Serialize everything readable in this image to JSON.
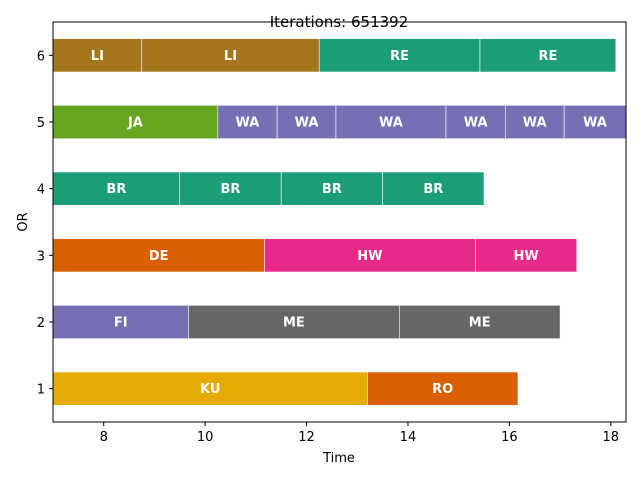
{
  "chart_data": {
    "type": "bar",
    "orientation": "horizontal",
    "title": "Iterations: 651392",
    "xlabel": "Time",
    "ylabel": "OR",
    "xlim": [
      7.0,
      18.3
    ],
    "ylim": [
      0.5,
      6.5
    ],
    "xticks": [
      8,
      10,
      12,
      14,
      16,
      18
    ],
    "yticks": [
      1,
      2,
      3,
      4,
      5,
      6
    ],
    "grid": false,
    "colors": {
      "LI": "#a6761d",
      "RE": "#1b9e77",
      "JA": "#66a61e",
      "WA": "#7570b3",
      "BR": "#1b9e77",
      "DE": "#d95f02",
      "HW": "#e7298a",
      "FI": "#7570b3",
      "ME": "#666666",
      "KU": "#e6ab02",
      "RO": "#d95f02"
    },
    "tasks": [
      {
        "row": 6,
        "label": "LI",
        "start": 7.0,
        "end": 8.75
      },
      {
        "row": 6,
        "label": "LI",
        "start": 8.75,
        "end": 12.25
      },
      {
        "row": 6,
        "label": "RE",
        "start": 12.25,
        "end": 15.42
      },
      {
        "row": 6,
        "label": "RE",
        "start": 15.42,
        "end": 18.1
      },
      {
        "row": 5,
        "label": "JA",
        "start": 7.0,
        "end": 10.25
      },
      {
        "row": 5,
        "label": "WA",
        "start": 10.25,
        "end": 11.42
      },
      {
        "row": 5,
        "label": "WA",
        "start": 11.42,
        "end": 12.58
      },
      {
        "row": 5,
        "label": "WA",
        "start": 12.58,
        "end": 14.75
      },
      {
        "row": 5,
        "label": "WA",
        "start": 14.75,
        "end": 15.92
      },
      {
        "row": 5,
        "label": "WA",
        "start": 15.92,
        "end": 17.08
      },
      {
        "row": 5,
        "label": "WA",
        "start": 17.08,
        "end": 18.3
      },
      {
        "row": 4,
        "label": "BR",
        "start": 7.0,
        "end": 9.5
      },
      {
        "row": 4,
        "label": "BR",
        "start": 9.5,
        "end": 11.5
      },
      {
        "row": 4,
        "label": "BR",
        "start": 11.5,
        "end": 13.5
      },
      {
        "row": 4,
        "label": "BR",
        "start": 13.5,
        "end": 15.5
      },
      {
        "row": 3,
        "label": "DE",
        "start": 7.0,
        "end": 11.17
      },
      {
        "row": 3,
        "label": "HW",
        "start": 11.17,
        "end": 15.33
      },
      {
        "row": 3,
        "label": "HW",
        "start": 15.33,
        "end": 17.33
      },
      {
        "row": 2,
        "label": "FI",
        "start": 7.0,
        "end": 9.67
      },
      {
        "row": 2,
        "label": "ME",
        "start": 9.67,
        "end": 13.83
      },
      {
        "row": 2,
        "label": "ME",
        "start": 13.83,
        "end": 17.0
      },
      {
        "row": 1,
        "label": "KU",
        "start": 7.0,
        "end": 13.2
      },
      {
        "row": 1,
        "label": "RO",
        "start": 13.2,
        "end": 16.17
      }
    ]
  }
}
